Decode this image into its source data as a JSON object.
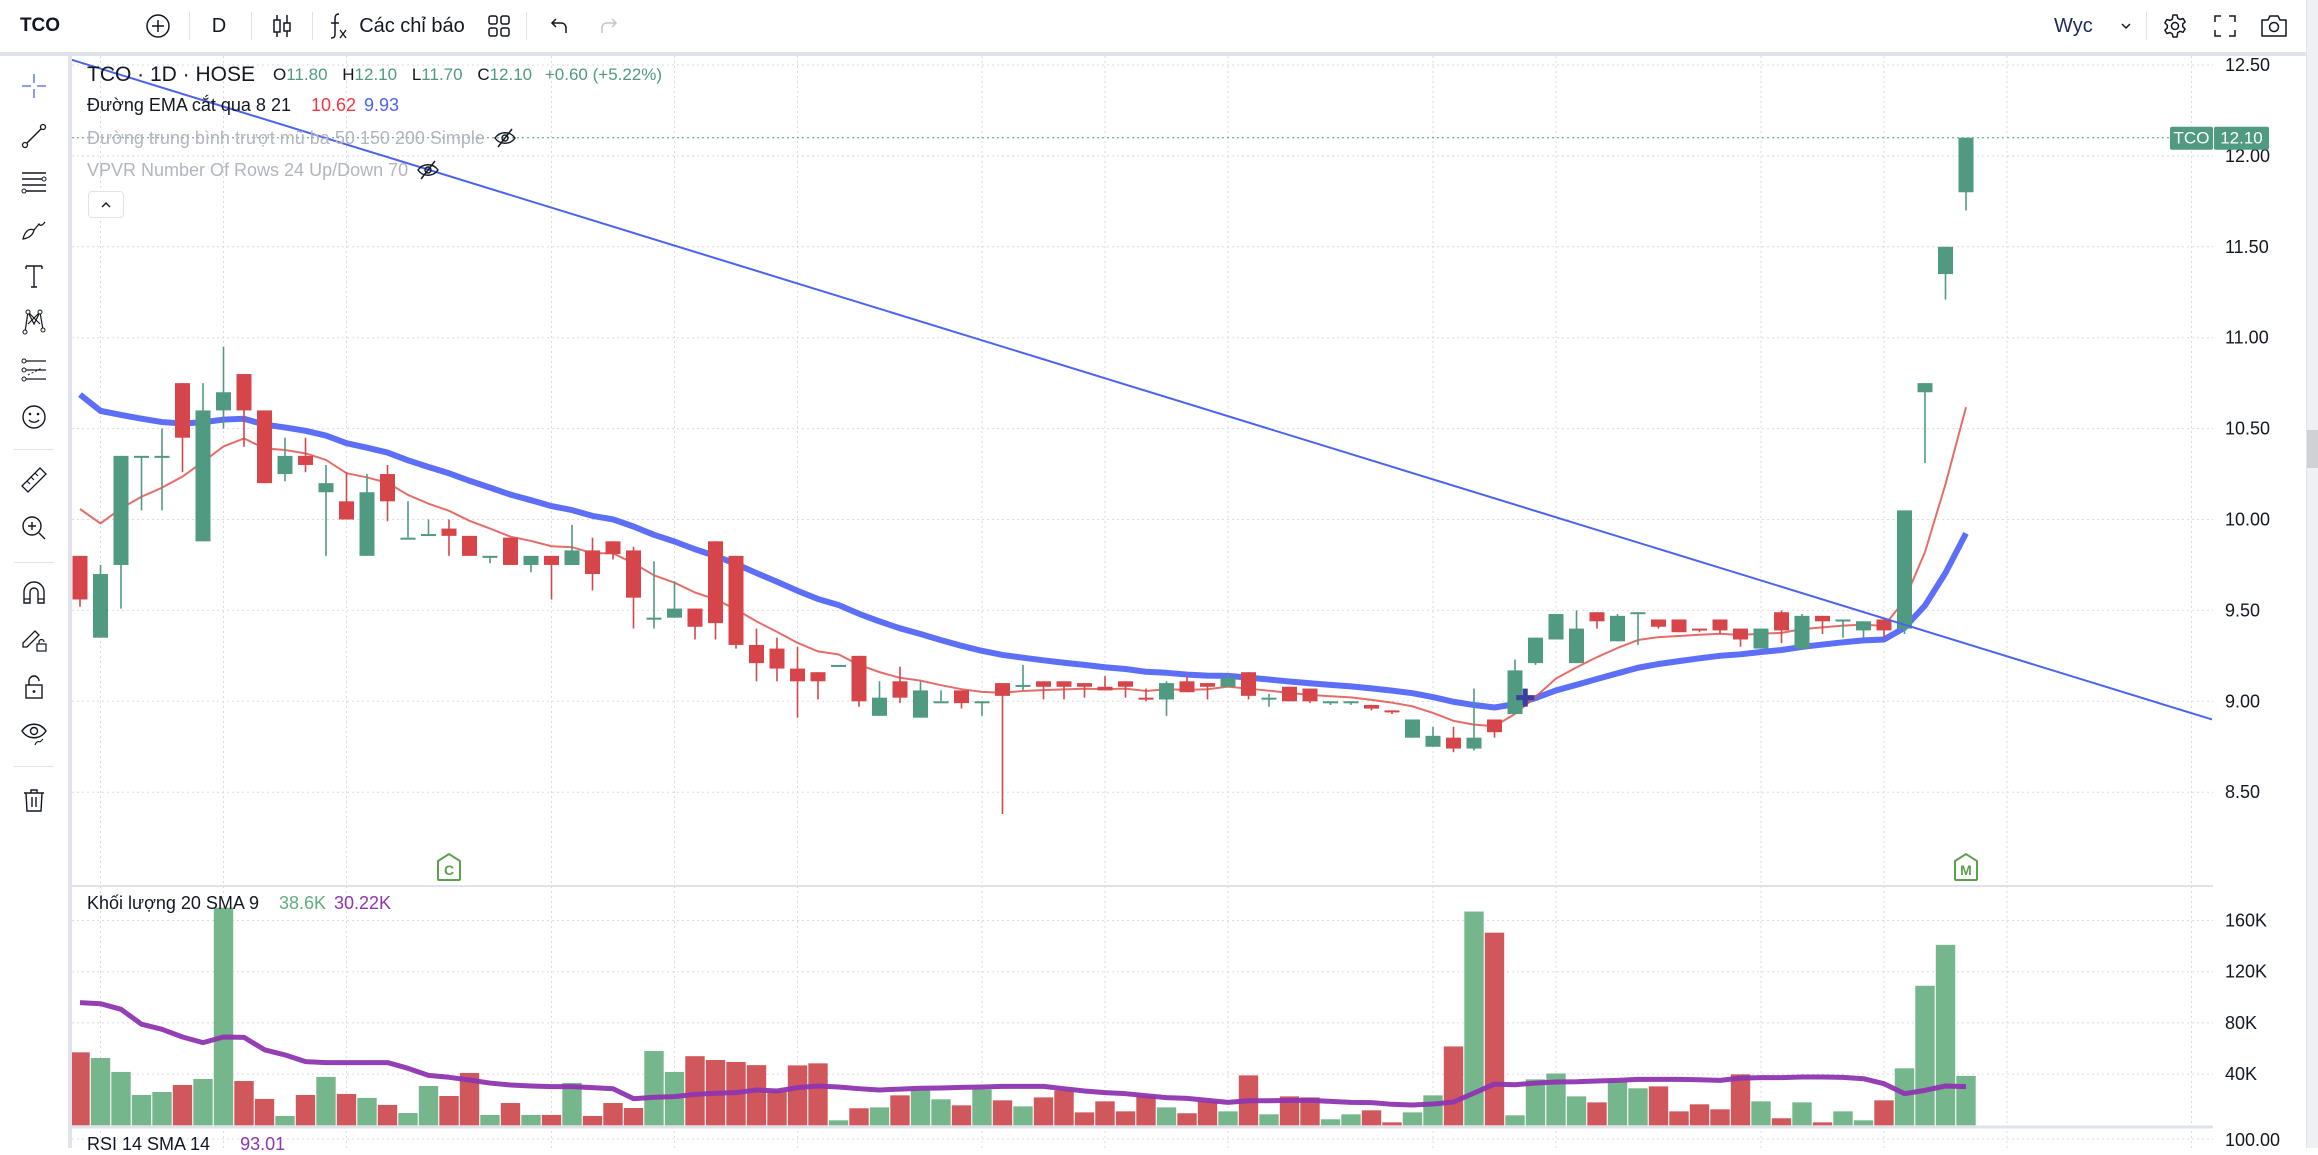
{
  "toolbar": {
    "symbol": "TCO",
    "interval": "D",
    "indicators_label": "Các chỉ báo",
    "layout_name": "Wyc",
    "icons": [
      "add-symbol-icon",
      "candles-icon",
      "fx-icon",
      "layout-grid-icon",
      "undo-icon",
      "redo-icon",
      "chevron-down-icon",
      "gear-icon",
      "fullscreen-icon",
      "camera-icon"
    ]
  },
  "left_toolbar": {
    "icons": [
      "crosshair-icon",
      "trend-line-icon",
      "fib-lines-icon",
      "brush-icon",
      "text-icon",
      "pattern-icon",
      "forecast-icon",
      "emoji-icon",
      "ruler-icon",
      "zoom-in-icon",
      "magnet-icon",
      "lock-drawing-icon",
      "lock-icon",
      "eye-icon",
      "trash-icon"
    ]
  },
  "legend": {
    "title": "TCO · 1D · HOSE",
    "o_label": "O",
    "o": "11.80",
    "h_label": "H",
    "h": "12.10",
    "l_label": "L",
    "l": "11.70",
    "c_label": "C",
    "c": "12.10",
    "change": "+0.60 (+5.22%)",
    "ema_label": "Đường EMA cắt qua 8 21",
    "ema_fast": "10.62",
    "ema_slow": "9.93",
    "ma_hidden_label": "Đường trung bình trượt mũ ba 50 150 200 Simple",
    "vpvr_hidden_label": "VPVR Number Of Rows 24 Up/Down 70"
  },
  "price_tag": {
    "symbol": "TCO",
    "value": "12.10"
  },
  "markers": [
    {
      "letter": "C",
      "bar": 18
    },
    {
      "letter": "M",
      "bar": 92
    }
  ],
  "volume_legend": {
    "label": "Khối lượng 20 SMA 9",
    "volume": "38.6K",
    "sma": "30.22K"
  },
  "rsi_legend": {
    "label": "RSI 14 SMA 14",
    "value": "93.01"
  },
  "colors": {
    "up": "#4f9a80",
    "down": "#d64549",
    "vol_up": "#76b68c",
    "vol_down": "#d0585c",
    "ema_fast": "#e0534f",
    "ema_slow": "#5367f5",
    "trend_line": "#4c63ef",
    "vol_sma": "#8e35b0",
    "marker": "#5d9e4f"
  },
  "chart_data": {
    "type": "candlestick",
    "price_axis": {
      "ticks": [
        "12.50",
        "12.00",
        "11.50",
        "11.00",
        "10.50",
        "10.00",
        "9.50",
        "9.00",
        "8.50"
      ],
      "range": [
        8.45,
        12.55
      ]
    },
    "volume_axis": {
      "ticks": [
        "160K",
        "120K",
        "80K",
        "40K"
      ],
      "unit": "K"
    },
    "rsi_axis": {
      "ticks": [
        "100.00"
      ]
    },
    "last_price": 12.1,
    "ohlc": [
      [
        9.8,
        9.8,
        9.52,
        9.56
      ],
      [
        9.35,
        9.75,
        9.35,
        9.7
      ],
      [
        9.75,
        10.35,
        9.51,
        10.35
      ],
      [
        10.35,
        10.35,
        10.05,
        10.35
      ],
      [
        10.35,
        10.5,
        10.05,
        10.35
      ],
      [
        10.75,
        10.75,
        10.26,
        10.45
      ],
      [
        9.88,
        10.75,
        9.88,
        10.6
      ],
      [
        10.6,
        10.95,
        10.5,
        10.7
      ],
      [
        10.8,
        10.8,
        10.4,
        10.6
      ],
      [
        10.6,
        10.6,
        10.2,
        10.2
      ],
      [
        10.25,
        10.45,
        10.21,
        10.35
      ],
      [
        10.35,
        10.45,
        10.26,
        10.3
      ],
      [
        10.15,
        10.3,
        9.8,
        10.2
      ],
      [
        10.1,
        10.26,
        10.0,
        10.0
      ],
      [
        9.8,
        10.25,
        9.8,
        10.15
      ],
      [
        10.25,
        10.3,
        9.99,
        10.1
      ],
      [
        9.9,
        10.1,
        9.9,
        9.9
      ],
      [
        9.92,
        10.0,
        9.92,
        9.92
      ],
      [
        9.95,
        10.0,
        9.8,
        9.91
      ],
      [
        9.91,
        9.91,
        9.8,
        9.8
      ],
      [
        9.8,
        9.8,
        9.76,
        9.8
      ],
      [
        9.9,
        9.9,
        9.75,
        9.75
      ],
      [
        9.75,
        9.8,
        9.71,
        9.8
      ],
      [
        9.8,
        9.8,
        9.56,
        9.75
      ],
      [
        9.75,
        9.97,
        9.75,
        9.83
      ],
      [
        9.83,
        9.9,
        9.61,
        9.7
      ],
      [
        9.88,
        9.88,
        9.78,
        9.81
      ],
      [
        9.83,
        9.85,
        9.4,
        9.57
      ],
      [
        9.46,
        9.77,
        9.4,
        9.46
      ],
      [
        9.46,
        9.66,
        9.46,
        9.51
      ],
      [
        9.51,
        9.51,
        9.34,
        9.41
      ],
      [
        9.88,
        9.88,
        9.34,
        9.43
      ],
      [
        9.8,
        9.8,
        9.29,
        9.31
      ],
      [
        9.31,
        9.4,
        9.11,
        9.21
      ],
      [
        9.29,
        9.35,
        9.11,
        9.18
      ],
      [
        9.18,
        9.3,
        8.91,
        9.11
      ],
      [
        9.16,
        9.16,
        9.01,
        9.11
      ],
      [
        9.2,
        9.2,
        9.19,
        9.2
      ],
      [
        9.25,
        9.25,
        8.97,
        9.0
      ],
      [
        8.92,
        9.11,
        8.92,
        9.02
      ],
      [
        9.11,
        9.19,
        8.99,
        9.02
      ],
      [
        8.91,
        9.11,
        8.91,
        9.06
      ],
      [
        9.0,
        9.06,
        9.0,
        9.0
      ],
      [
        9.06,
        9.06,
        8.96,
        8.99
      ],
      [
        9.0,
        9.0,
        8.92,
        9.0
      ],
      [
        9.1,
        9.1,
        8.38,
        9.03
      ],
      [
        9.09,
        9.2,
        9.06,
        9.09
      ],
      [
        9.11,
        9.11,
        9.01,
        9.08
      ],
      [
        9.11,
        9.11,
        9.01,
        9.08
      ],
      [
        9.1,
        9.1,
        9.02,
        9.08
      ],
      [
        9.08,
        9.14,
        9.06,
        9.06
      ],
      [
        9.11,
        9.11,
        9.02,
        9.08
      ],
      [
        9.02,
        9.07,
        9.0,
        9.01
      ],
      [
        9.01,
        9.11,
        8.92,
        9.1
      ],
      [
        9.11,
        9.14,
        9.05,
        9.05
      ],
      [
        9.1,
        9.1,
        9.01,
        9.08
      ],
      [
        9.08,
        9.15,
        9.08,
        9.13
      ],
      [
        9.16,
        9.16,
        9.01,
        9.03
      ],
      [
        9.02,
        9.04,
        8.97,
        9.02
      ],
      [
        9.08,
        9.08,
        9.0,
        9.0
      ],
      [
        9.07,
        9.07,
        8.99,
        9.0
      ],
      [
        9.0,
        9.0,
        8.98,
        9.0
      ],
      [
        8.99,
        9.0,
        8.98,
        9.0
      ],
      [
        8.98,
        8.98,
        8.95,
        8.96
      ],
      [
        8.95,
        8.95,
        8.93,
        8.94
      ],
      [
        8.8,
        8.9,
        8.8,
        8.9
      ],
      [
        8.75,
        8.86,
        8.75,
        8.81
      ],
      [
        8.8,
        8.86,
        8.72,
        8.74
      ],
      [
        8.74,
        9.07,
        8.73,
        8.8
      ],
      [
        8.9,
        8.9,
        8.8,
        8.83
      ],
      [
        8.93,
        9.23,
        8.93,
        9.17
      ],
      [
        9.21,
        9.35,
        9.2,
        9.35
      ],
      [
        9.34,
        9.48,
        9.34,
        9.48
      ],
      [
        9.21,
        9.5,
        9.21,
        9.4
      ],
      [
        9.49,
        9.49,
        9.4,
        9.44
      ],
      [
        9.33,
        9.48,
        9.33,
        9.47
      ],
      [
        9.48,
        9.49,
        9.31,
        9.49
      ],
      [
        9.45,
        9.45,
        9.4,
        9.41
      ],
      [
        9.45,
        9.45,
        9.38,
        9.38
      ],
      [
        9.4,
        9.4,
        9.38,
        9.39
      ],
      [
        9.45,
        9.45,
        9.37,
        9.39
      ],
      [
        9.4,
        9.4,
        9.3,
        9.34
      ],
      [
        9.29,
        9.4,
        9.29,
        9.4
      ],
      [
        9.49,
        9.5,
        9.32,
        9.39
      ],
      [
        9.29,
        9.48,
        9.29,
        9.47
      ],
      [
        9.47,
        9.47,
        9.37,
        9.44
      ],
      [
        9.45,
        9.45,
        9.35,
        9.45
      ],
      [
        9.39,
        9.44,
        9.35,
        9.44
      ],
      [
        9.45,
        9.45,
        9.35,
        9.39
      ],
      [
        9.4,
        10.05,
        9.37,
        10.05
      ],
      [
        10.7,
        10.75,
        10.31,
        10.75
      ],
      [
        11.35,
        11.5,
        11.21,
        11.5
      ],
      [
        11.8,
        12.1,
        11.7,
        12.1
      ]
    ],
    "volume_k": [
      57,
      52.6,
      41.7,
      23.7,
      26,
      31.5,
      36.2,
      170,
      34.6,
      20.6,
      7.3,
      23.7,
      37.8,
      24.5,
      21.4,
      15.9,
      9.6,
      30.7,
      22.9,
      40.9,
      8.1,
      17.4,
      8.1,
      8.1,
      33.1,
      7.3,
      17.4,
      13.5,
      58,
      41.7,
      54,
      51,
      49.5,
      47,
      27,
      46.8,
      48.4,
      3.9,
      13.3,
      14,
      23.4,
      27.3,
      20.3,
      15.6,
      28,
      19.5,
      14.8,
      21.8,
      27.3,
      10.1,
      18.7,
      10.9,
      22.6,
      14,
      9.4,
      18.7,
      10.9,
      39,
      8.6,
      22.6,
      21.8,
      4.7,
      8.6,
      11.7,
      2.3,
      10.1,
      23.4,
      61.6,
      167,
      150.5,
      7.8,
      35.9,
      40.5,
      22.6,
      17.9,
      34.3,
      28.9,
      30.4,
      10.9,
      16.4,
      12.5,
      39.8,
      18.7,
      5.5,
      17.9,
      2.3,
      10.9,
      3.9,
      19.5,
      44.5,
      109,
      141,
      38.6
    ],
    "volume_sma_k": [
      95.8,
      95,
      90.6,
      79,
      75,
      69,
      64.6,
      69,
      68.7,
      59,
      55,
      49.7,
      49,
      49,
      49,
      49,
      44.5,
      39,
      37.5,
      35.4,
      33,
      31.5,
      30.7,
      30.2,
      30.2,
      29.4,
      28.6,
      20.8,
      21.9,
      22.4,
      24.2,
      25,
      25.5,
      27.6,
      26.8,
      29.4,
      30.7,
      29.9,
      28.6,
      27.6,
      28.3,
      28.9,
      29.1,
      29.6,
      29.9,
      30.4,
      30.4,
      30.4,
      28.6,
      26.8,
      25.5,
      24.7,
      23.1,
      21.6,
      21,
      19.5,
      17.9,
      19.2,
      19.2,
      19.5,
      19.5,
      18.7,
      17.9,
      17.7,
      16.4,
      15.9,
      16.6,
      18.2,
      25.2,
      32.2,
      31.7,
      33,
      33.8,
      34,
      34.6,
      35.1,
      35.9,
      35.9,
      35.9,
      35.6,
      35.1,
      36.9,
      37.2,
      37.2,
      37.7,
      37.7,
      37.4,
      36.4,
      32.5,
      24.7,
      27.3,
      30.7,
      30.22
    ],
    "ema_periods": [
      8,
      21
    ],
    "trend_line": [
      {
        "bar": -0.44,
        "price": 12.53
      },
      {
        "bar": 104,
        "price": 8.9
      }
    ],
    "crossover_mark": {
      "bar": 70.5,
      "price": 9.02
    }
  }
}
